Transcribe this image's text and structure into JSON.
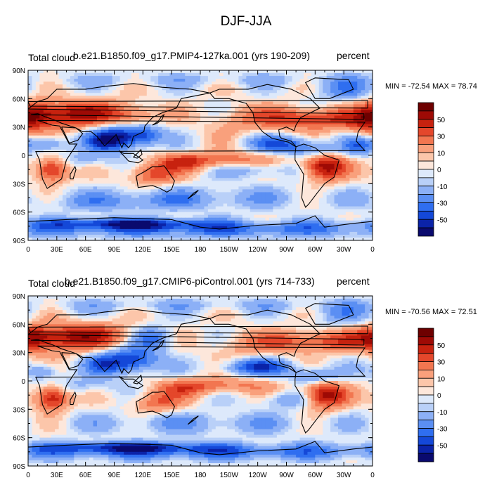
{
  "figure": {
    "title": "DJF-JJA"
  },
  "colors": {
    "levels": [
      -60,
      -50,
      -40,
      -30,
      -20,
      -10,
      -5,
      0,
      5,
      10,
      20,
      30,
      40,
      50,
      60
    ],
    "palette": [
      "#0a0a6e",
      "#0b23a8",
      "#1448d8",
      "#2f6ef0",
      "#5b8ff3",
      "#8cb0f6",
      "#b9d0f8",
      "#dde9fb",
      "#fde7db",
      "#fcc6aa",
      "#f9a07c",
      "#f27650",
      "#e4472b",
      "#c7220f",
      "#9e0a05",
      "#6e0000"
    ],
    "coast": "#000000"
  },
  "panels": [
    {
      "title_left": "Total cloud",
      "title_center": "b.e21.B1850.f09_g17.PMIP4-127ka.001 (yrs 190-209)",
      "title_right": "percent",
      "min_max": "MIN = -72.54 MAX =  78.74"
    },
    {
      "title_left": "Total cloud",
      "title_center": "b.e21.B1850.f09_g17.CMIP6-piControl.001 (yrs 714-733)",
      "title_right": "percent",
      "min_max": "MIN = -70.56 MAX =  72.51"
    }
  ],
  "axes": {
    "lat_labels": [
      "90N",
      "60N",
      "30N",
      "0",
      "30S",
      "60S",
      "90S"
    ],
    "lat_values": [
      90,
      60,
      30,
      0,
      -30,
      -60,
      -90
    ],
    "lon_labels": [
      "0",
      "30E",
      "60E",
      "90E",
      "120E",
      "150E",
      "180",
      "150W",
      "120W",
      "90W",
      "60W",
      "30W",
      "0"
    ],
    "lon_values": [
      0,
      30,
      60,
      90,
      120,
      150,
      180,
      210,
      240,
      270,
      300,
      330,
      360
    ]
  },
  "colorbar": {
    "tick_labels": [
      "50",
      "30",
      "10",
      "0",
      "-10",
      "-30",
      "-50"
    ],
    "tick_values": [
      50,
      30,
      10,
      0,
      -10,
      -30,
      -50
    ]
  }
}
